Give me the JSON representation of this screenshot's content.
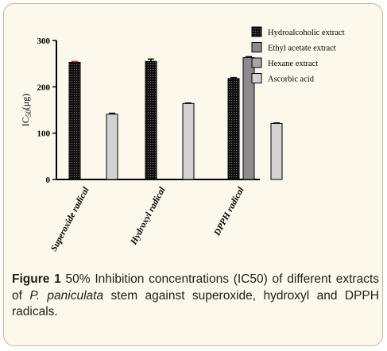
{
  "chart_data": {
    "type": "bar",
    "ylabel_main": "IC",
    "ylabel_sub": "50",
    "ylabel_unit": "(μg)",
    "ylim": [
      0,
      300
    ],
    "yticks": [
      "0",
      "100",
      "200",
      "300"
    ],
    "categories": [
      "Superoxide radical",
      "Hydroxyl radical",
      "DPPH radical"
    ],
    "series": [
      {
        "name": "Hydroalcoholic extract",
        "values": [
          253,
          255,
          218
        ],
        "errors": [
          2,
          5,
          2
        ],
        "color": "#111111",
        "pattern": "dotted"
      },
      {
        "name": "Ethyl acetate extract",
        "values": [
          null,
          null,
          263
        ],
        "errors": [
          0,
          0,
          2
        ],
        "color": "#8c8c8c",
        "pattern": "solid"
      },
      {
        "name": "Hexane extract",
        "values": [
          null,
          null,
          null
        ],
        "errors": [
          0,
          0,
          0
        ],
        "color": "#a6a6a6",
        "pattern": "solid"
      },
      {
        "name": "Ascorbic acid",
        "values": [
          141,
          164,
          121
        ],
        "errors": [
          2,
          1,
          1
        ],
        "color": "#d2d2d2",
        "pattern": "solid"
      }
    ],
    "legend_position": "top-right",
    "grid": false,
    "error_highlight_color": "#e23030"
  },
  "caption": {
    "label": "Figure 1",
    "text_before": "50% Inhibition concentrations (IC50) of different extracts of",
    "species": "P. paniculata",
    "text_after": "stem against superoxide, hydroxyl and DPPH radicals."
  }
}
